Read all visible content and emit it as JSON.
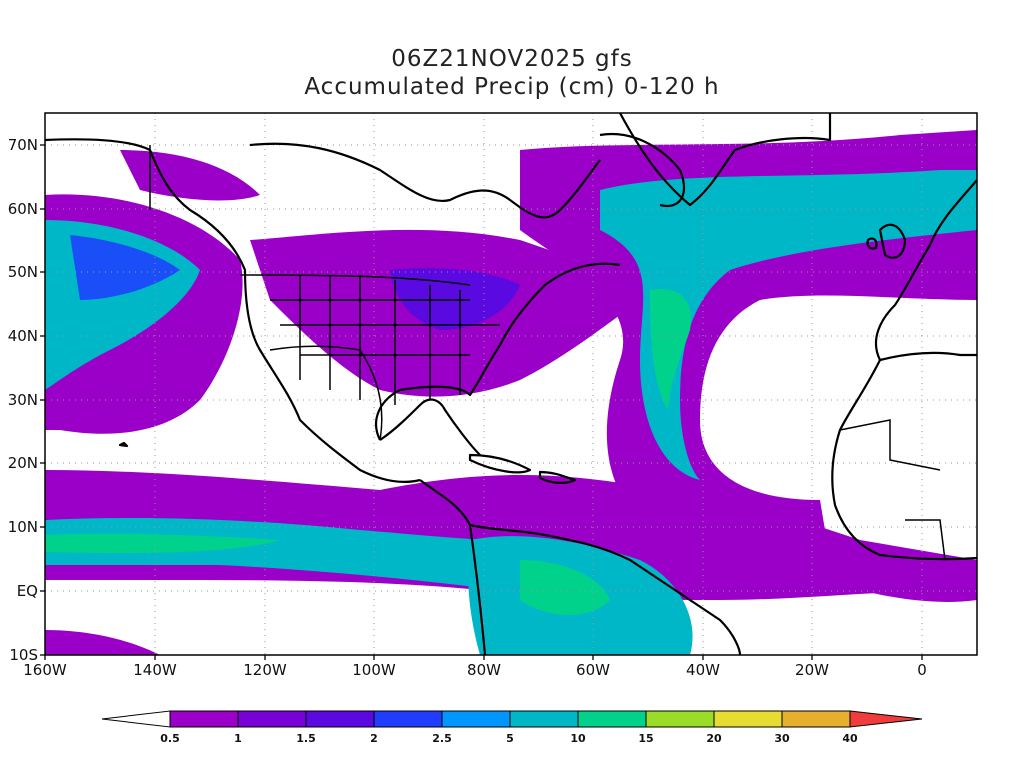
{
  "title_line1": "06Z21NOV2025 gfs",
  "title_line2": "Accumulated Precip (cm) 0-120 h",
  "map": {
    "lon_range": [
      -160,
      10
    ],
    "lat_range": [
      -10,
      75
    ],
    "lat_labels": [
      "70N",
      "60N",
      "50N",
      "40N",
      "30N",
      "20N",
      "10N",
      "EQ",
      "10S"
    ],
    "lon_labels": [
      "160W",
      "140W",
      "120W",
      "100W",
      "80W",
      "60W",
      "40W",
      "20W",
      "0"
    ],
    "grid": "dotted"
  },
  "colorbar": {
    "labels": [
      "0.5",
      "1",
      "1.5",
      "2",
      "2.5",
      "5",
      "10",
      "15",
      "20",
      "30",
      "40"
    ],
    "colors": [
      "#9b00c8",
      "#7a00d8",
      "#5a0ae0",
      "#1f3cff",
      "#0096ff",
      "#00b7c8",
      "#00d28c",
      "#9bdc28",
      "#e6dc32",
      "#e6af2d",
      "#f08228",
      "#f03c3c"
    ],
    "under_color": "#ffffff",
    "over_color": "#f03c3c"
  }
}
